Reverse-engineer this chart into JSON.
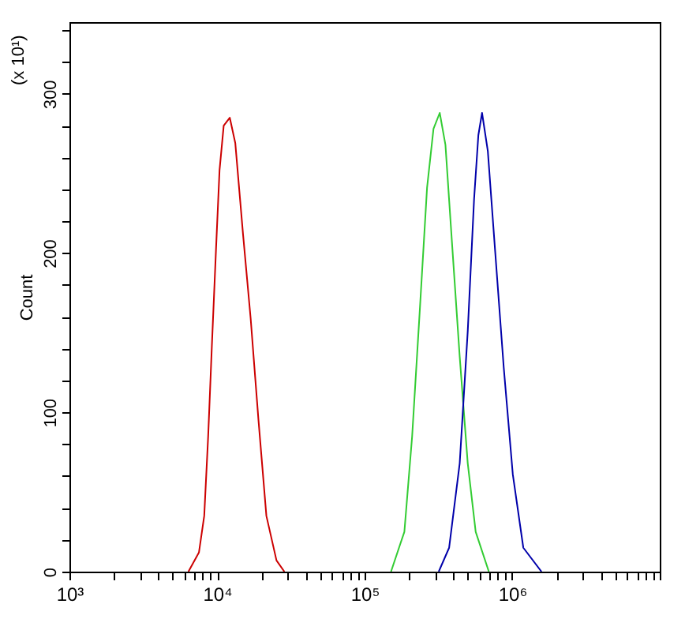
{
  "chart_data": {
    "type": "line",
    "ylabel": "Count",
    "annotations": [
      "(x 10¹)"
    ],
    "log": "x",
    "xlim": [
      1000,
      10000000
    ],
    "ylim": [
      0,
      345
    ],
    "xticks": [
      {
        "value": 1000,
        "label": "10³"
      },
      {
        "value": 2000,
        "label": null
      },
      {
        "value": 3000,
        "label": null
      },
      {
        "value": 4000,
        "label": null
      },
      {
        "value": 5000,
        "label": null
      },
      {
        "value": 6000,
        "label": null
      },
      {
        "value": 7000,
        "label": null
      },
      {
        "value": 8000,
        "label": null
      },
      {
        "value": 9000,
        "label": null
      },
      {
        "value": 10000,
        "label": "10⁴"
      },
      {
        "value": 20000,
        "label": null
      },
      {
        "value": 30000,
        "label": null
      },
      {
        "value": 40000,
        "label": null
      },
      {
        "value": 50000,
        "label": null
      },
      {
        "value": 60000,
        "label": null
      },
      {
        "value": 70000,
        "label": null
      },
      {
        "value": 80000,
        "label": null
      },
      {
        "value": 90000,
        "label": null
      },
      {
        "value": 100000,
        "label": "10⁵"
      },
      {
        "value": 200000,
        "label": null
      },
      {
        "value": 300000,
        "label": null
      },
      {
        "value": 400000,
        "label": null
      },
      {
        "value": 500000,
        "label": null
      },
      {
        "value": 600000,
        "label": null
      },
      {
        "value": 700000,
        "label": null
      },
      {
        "value": 800000,
        "label": null
      },
      {
        "value": 900000,
        "label": null
      },
      {
        "value": 1000000,
        "label": "10⁶"
      },
      {
        "value": 2000000,
        "label": null
      },
      {
        "value": 3000000,
        "label": null
      },
      {
        "value": 4000000,
        "label": null
      },
      {
        "value": 5000000,
        "label": null
      },
      {
        "value": 6000000,
        "label": null
      },
      {
        "value": 7000000,
        "label": null
      },
      {
        "value": 8000000,
        "label": null
      },
      {
        "value": 9000000,
        "label": null
      },
      {
        "value": 10000000,
        "label": null
      }
    ],
    "yticks": [
      0,
      {
        "value": 20,
        "label": null
      },
      {
        "value": 40,
        "label": null
      },
      {
        "value": 60,
        "label": null
      },
      {
        "value": 80,
        "label": null
      },
      100,
      {
        "value": 120,
        "label": null
      },
      {
        "value": 140,
        "label": null
      },
      {
        "value": 160,
        "label": null
      },
      {
        "value": 180,
        "label": null
      },
      200,
      {
        "value": 220,
        "label": null
      },
      {
        "value": 240,
        "label": null
      },
      {
        "value": 260,
        "label": null
      },
      {
        "value": 280,
        "label": null
      },
      300,
      {
        "value": 320,
        "label": null
      },
      {
        "value": 340,
        "label": null
      }
    ],
    "grid": false,
    "series": [
      {
        "color": "#cc0000",
        "x": [
          6400,
          7540,
          8190,
          8710,
          9230,
          9840,
          10400,
          11100,
          12200,
          13300,
          15000,
          16900,
          19100,
          21600,
          25300,
          28600
        ],
        "values": [
          0,
          12,
          35,
          85,
          142,
          202,
          252,
          280,
          285,
          269,
          212,
          159,
          95,
          35,
          7,
          0
        ]
      },
      {
        "color": "#33cc33",
        "x": [
          151000,
          186000,
          210000,
          238000,
          265000,
          293000,
          323000,
          353000,
          390000,
          441000,
          500000,
          566000,
          695000
        ],
        "values": [
          0,
          25,
          85,
          168,
          241,
          278,
          288,
          268,
          208,
          135,
          68,
          25,
          0
        ]
      },
      {
        "color": "#0000aa",
        "x": [
          318000,
          374000,
          441000,
          500000,
          552000,
          590000,
          625000,
          684000,
          767000,
          877000,
          1010000,
          1190000,
          1580000
        ],
        "values": [
          0,
          15,
          68,
          151,
          234,
          274,
          288,
          264,
          201,
          128,
          61,
          15,
          0
        ]
      }
    ]
  }
}
